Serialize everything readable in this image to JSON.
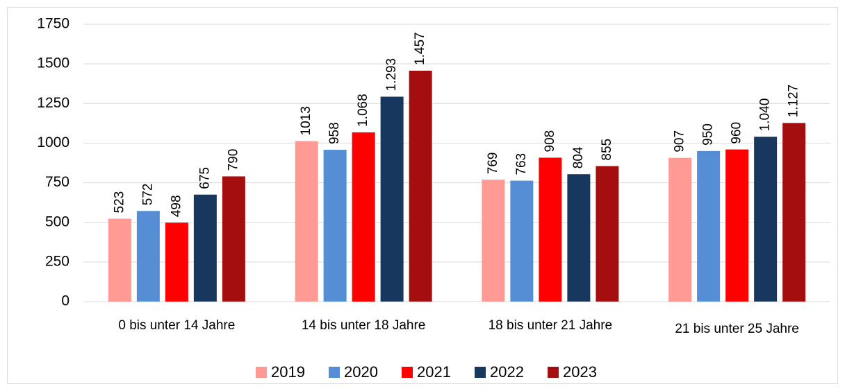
{
  "chart_data": {
    "type": "bar",
    "categories": [
      "0 bis unter 14 Jahre",
      "14 bis unter 18 Jahre",
      "18 bis unter 21 Jahre",
      "21 bis unter 25 Jahre"
    ],
    "series": [
      {
        "name": "2019",
        "color": "#ff9a94",
        "values": [
          523,
          1013,
          769,
          907
        ],
        "value_labels": [
          "523",
          "1013",
          "769",
          "907"
        ]
      },
      {
        "name": "2020",
        "color": "#558ed5",
        "values": [
          572,
          958,
          763,
          950
        ],
        "value_labels": [
          "572",
          "958",
          "763",
          "950"
        ]
      },
      {
        "name": "2021",
        "color": "#ff0000",
        "values": [
          498,
          1068,
          908,
          960
        ],
        "value_labels": [
          "498",
          "1.068",
          "908",
          "960"
        ]
      },
      {
        "name": "2022",
        "color": "#17375e",
        "values": [
          675,
          1293,
          804,
          1040
        ],
        "value_labels": [
          "675",
          "1.293",
          "804",
          "1.040"
        ]
      },
      {
        "name": "2023",
        "color": "#a50e0e",
        "values": [
          790,
          1457,
          855,
          1127
        ],
        "value_labels": [
          "790",
          "1.457",
          "855",
          "1.127"
        ]
      }
    ],
    "ylim": [
      0,
      1750
    ],
    "yticks": [
      0,
      250,
      500,
      750,
      1000,
      1250,
      1500,
      1750
    ],
    "grid": true,
    "legend": "bottom"
  }
}
